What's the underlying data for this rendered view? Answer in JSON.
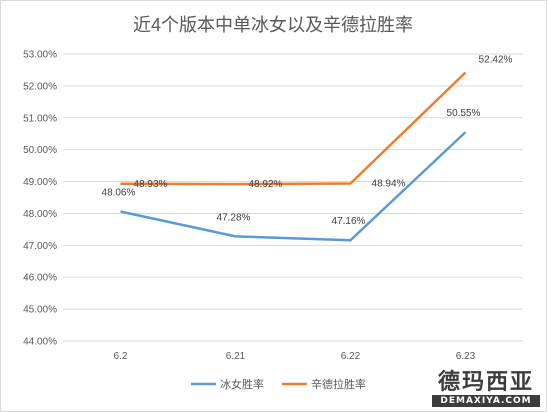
{
  "chart_data": {
    "type": "line",
    "title": "近4个版本中单冰女以及辛德拉胜率",
    "categories": [
      "6.2",
      "6.21",
      "6.22",
      "6.23"
    ],
    "ylim": [
      44,
      53
    ],
    "ytick_step": 1,
    "ytick_labels": [
      "44.00%",
      "45.00%",
      "46.00%",
      "47.00%",
      "48.00%",
      "49.00%",
      "50.00%",
      "51.00%",
      "52.00%",
      "53.00%"
    ],
    "grid": true,
    "legend": "bottom",
    "series": [
      {
        "name": "冰女胜率",
        "color": "#5b9bd5",
        "values": [
          48.06,
          47.28,
          47.16,
          50.55
        ],
        "labels": [
          "48.06%",
          "47.28%",
          "47.16%",
          "50.55%"
        ]
      },
      {
        "name": "辛德拉胜率",
        "color": "#ed7d31",
        "values": [
          48.93,
          48.92,
          48.94,
          52.42
        ],
        "labels": [
          "48.93%",
          "48.92%",
          "48.94%",
          "52.42%"
        ]
      }
    ]
  },
  "watermark": {
    "cn": "德玛西亚",
    "en": "DEMAXIYA.COM"
  }
}
